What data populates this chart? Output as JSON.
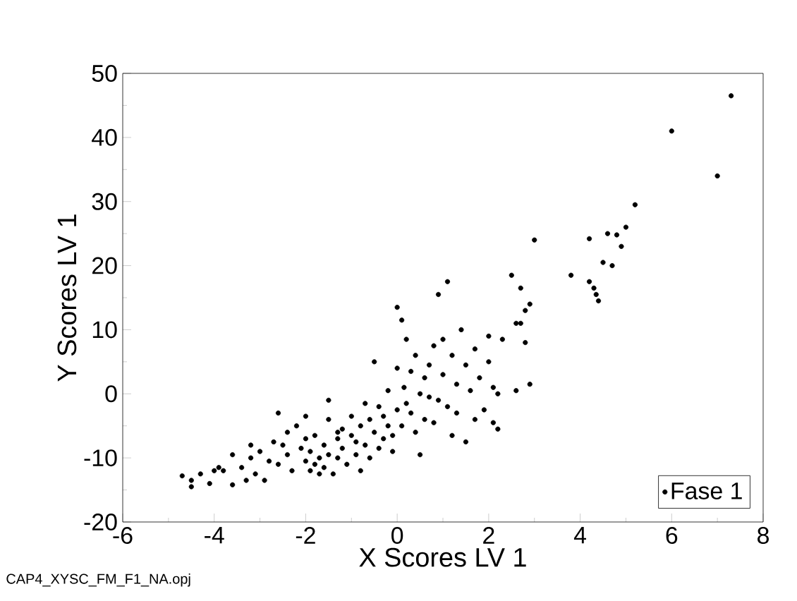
{
  "chart_data": {
    "type": "scatter",
    "xlabel": "X Scores LV 1",
    "ylabel": "Y Scores LV 1",
    "annotations": [
      "CAP4_XYSC_FM_F1_NA.opj"
    ],
    "xlim": [
      -6,
      8
    ],
    "ylim": [
      -20,
      50
    ],
    "xticks": [
      -6,
      -4,
      -2,
      0,
      2,
      4,
      6,
      8
    ],
    "yticks": [
      -20,
      -10,
      0,
      10,
      20,
      30,
      40,
      50
    ],
    "grid": false,
    "legend": "bottom right",
    "marker": "circle",
    "series": [
      {
        "name": "Fase 1",
        "color": "#000000",
        "x": [
          -4.7,
          -4.5,
          -4.5,
          -4.3,
          -4.1,
          -4.0,
          -3.9,
          -3.8,
          -3.6,
          -3.6,
          -3.4,
          -3.3,
          -3.2,
          -3.2,
          -3.1,
          -3.0,
          -2.9,
          -2.8,
          -2.7,
          -2.6,
          -2.6,
          -2.5,
          -2.4,
          -2.4,
          -2.3,
          -2.2,
          -2.1,
          -2.0,
          -2.0,
          -2.0,
          -1.9,
          -1.9,
          -1.8,
          -1.8,
          -1.7,
          -1.7,
          -1.6,
          -1.6,
          -1.5,
          -1.5,
          -1.5,
          -1.4,
          -1.3,
          -1.3,
          -1.3,
          -1.2,
          -1.2,
          -1.1,
          -1.0,
          -1.0,
          -0.9,
          -0.9,
          -0.8,
          -0.8,
          -0.7,
          -0.7,
          -0.6,
          -0.6,
          -0.5,
          -0.5,
          -0.4,
          -0.4,
          -0.3,
          -0.3,
          -0.2,
          -0.2,
          -0.1,
          -0.1,
          0.0,
          0.0,
          0.0,
          0.1,
          0.1,
          0.15,
          0.2,
          0.2,
          0.3,
          0.3,
          0.4,
          0.4,
          0.5,
          0.5,
          0.6,
          0.6,
          0.7,
          0.7,
          0.8,
          0.8,
          0.9,
          0.9,
          1.0,
          1.0,
          1.1,
          1.1,
          1.2,
          1.2,
          1.3,
          1.3,
          1.4,
          1.5,
          1.5,
          1.6,
          1.7,
          1.7,
          1.8,
          1.9,
          2.0,
          2.0,
          2.1,
          2.1,
          2.2,
          2.3,
          2.2,
          2.5,
          2.6,
          2.6,
          2.7,
          2.7,
          2.8,
          2.8,
          2.9,
          2.9,
          3.0,
          3.8,
          4.2,
          4.2,
          4.3,
          4.35,
          4.4,
          4.5,
          4.6,
          4.7,
          4.8,
          4.9,
          5.0,
          5.2,
          6.0,
          7.0,
          7.3
        ],
        "values": [
          -12.8,
          -14.5,
          -13.5,
          -12.5,
          -14,
          -12,
          -11.5,
          -12,
          -14.2,
          -9.5,
          -11.5,
          -13.5,
          -10,
          -8,
          -12.5,
          -9,
          -13.5,
          -10.5,
          -7.5,
          -11,
          -3,
          -8,
          -6,
          -9.5,
          -12,
          -5,
          -8.5,
          -10.5,
          -7,
          -3.5,
          -12,
          -9,
          -11,
          -6.5,
          -10,
          -12.5,
          -8,
          -11.5,
          -9.5,
          -4,
          -1,
          -12.5,
          -7,
          -10,
          -6,
          -5.5,
          -8.5,
          -11,
          -6.5,
          -3.5,
          -9.5,
          -7.5,
          -5,
          -12,
          -8,
          -1.5,
          -4,
          -10,
          -6,
          5,
          -2,
          -8.5,
          -7,
          -3.5,
          -5,
          0.5,
          -9,
          -6.5,
          -2.5,
          4,
          13.5,
          -5,
          11.5,
          1,
          -1.5,
          8.5,
          -3,
          3.5,
          -6,
          6,
          0,
          -9.5,
          2.5,
          -4,
          4.5,
          -0.5,
          7.5,
          -4.5,
          -1,
          15.5,
          3,
          8.5,
          -2,
          17.5,
          6,
          -6.5,
          1.5,
          -3,
          10,
          4.5,
          -7.5,
          0.5,
          7,
          -4,
          2.5,
          -2.5,
          5,
          9,
          -4.5,
          1,
          -5.5,
          8.5,
          0,
          18.5,
          11,
          0.5,
          16.5,
          11,
          13,
          8,
          14,
          1.5,
          24,
          18.5,
          24.2,
          17.5,
          16.5,
          15.5,
          14.5,
          20.5,
          25,
          20,
          24.8,
          23,
          26,
          29.5,
          41,
          34,
          46.5
        ]
      }
    ]
  }
}
